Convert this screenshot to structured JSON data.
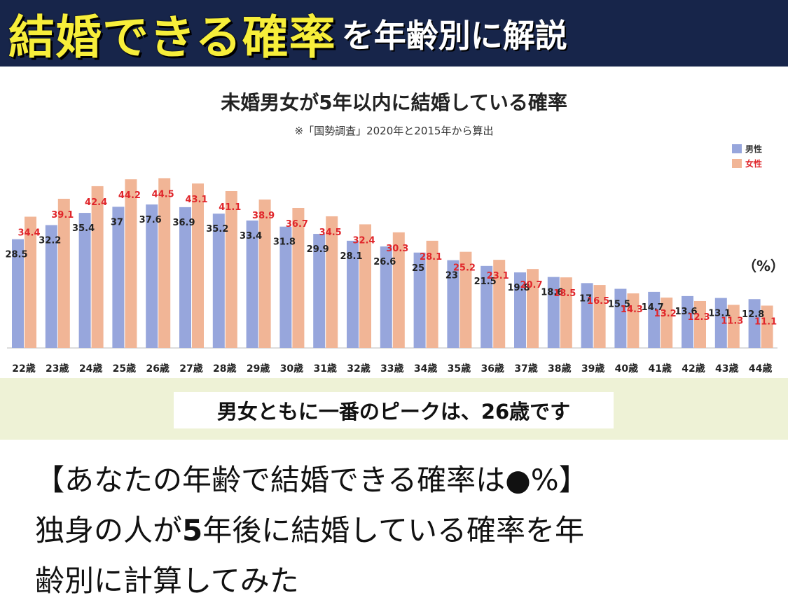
{
  "banner": {
    "title_big": "結婚できる確率",
    "title_small": "を年齢別に解説"
  },
  "chart_data": {
    "type": "bar",
    "title": "未婚男女が5年以内に結婚している確率",
    "subtitle": "※「国勢調査」2020年と2015年から算出",
    "unit_label": "（%）",
    "categories": [
      "22歳",
      "23歳",
      "24歳",
      "25歳",
      "26歳",
      "27歳",
      "28歳",
      "29歳",
      "30歳",
      "31歳",
      "32歳",
      "33歳",
      "34歳",
      "35歳",
      "36歳",
      "37歳",
      "38歳",
      "39歳",
      "40歳",
      "41歳",
      "42歳",
      "43歳",
      "44歳"
    ],
    "series": [
      {
        "name": "男性",
        "color": "#97a6dc",
        "label_color": "#222222",
        "values": [
          28.5,
          32.2,
          35.4,
          37,
          37.6,
          36.9,
          35.2,
          33.4,
          31.8,
          29.9,
          28.1,
          26.6,
          25,
          23,
          21.5,
          19.8,
          18.6,
          17,
          15.5,
          14.7,
          13.6,
          13.1,
          12.8
        ]
      },
      {
        "name": "女性",
        "color": "#f1b596",
        "label_color": "#e0262b",
        "values": [
          34.4,
          39.1,
          42.4,
          44.2,
          44.5,
          43.1,
          41.1,
          38.9,
          36.7,
          34.5,
          32.4,
          30.3,
          28.1,
          25.2,
          23.1,
          20.7,
          18.5,
          16.5,
          14.3,
          13.2,
          12.3,
          11.3,
          11.1
        ]
      }
    ],
    "ylim": [
      0,
      50
    ],
    "legend_position": "top-right",
    "grid": false
  },
  "callout": {
    "text": "男女ともに一番のピークは、26歳です"
  },
  "caption": {
    "line1": "【あなたの年齢で結婚できる確率は●%】",
    "line2_pre": "独身の人が",
    "line2_num": "5",
    "line2_post": "年後に結婚している確率を年",
    "line3": "齢別に計算してみた"
  }
}
